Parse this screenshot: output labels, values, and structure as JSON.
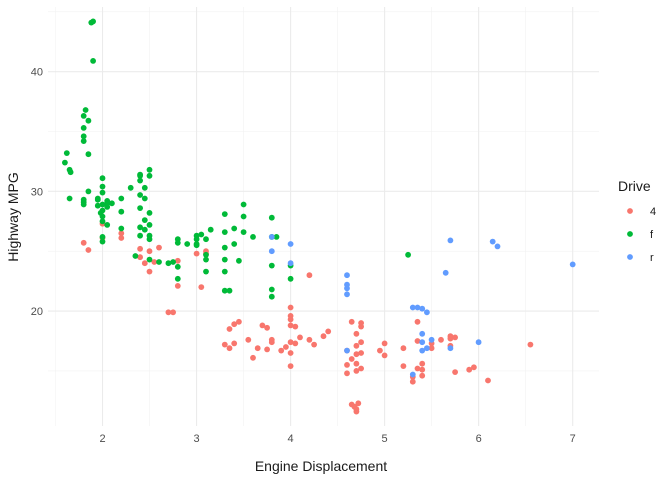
{
  "chart_data": {
    "type": "scatter",
    "xlabel": "Engine Displacement",
    "ylabel": "Highway MPG",
    "xlim": [
      1.42,
      7.28
    ],
    "ylim": [
      10.4,
      45.4
    ],
    "x_ticks": [
      2,
      3,
      4,
      5,
      6,
      7
    ],
    "y_ticks": [
      20,
      30,
      40
    ],
    "grid": true,
    "legend": {
      "title": "Drive",
      "position": "right"
    },
    "series": [
      {
        "name": "4",
        "color": "#F8766D",
        "points": [
          [
            1.8,
            25.7
          ],
          [
            1.85,
            25.1
          ],
          [
            2.0,
            26.1
          ],
          [
            2.0,
            27.3
          ],
          [
            2.2,
            26.5
          ],
          [
            2.2,
            26.1
          ],
          [
            2.4,
            25.2
          ],
          [
            2.4,
            24.5
          ],
          [
            2.45,
            24.0
          ],
          [
            2.5,
            25.0
          ],
          [
            2.5,
            23.3
          ],
          [
            2.55,
            24.1
          ],
          [
            2.6,
            25.3
          ],
          [
            2.7,
            19.9
          ],
          [
            2.75,
            19.9
          ],
          [
            2.8,
            24.2
          ],
          [
            2.8,
            22.1
          ],
          [
            3.0,
            24.8
          ],
          [
            3.05,
            22.0
          ],
          [
            3.1,
            25.0
          ],
          [
            3.1,
            24.8
          ],
          [
            3.3,
            17.2
          ],
          [
            3.35,
            16.9
          ],
          [
            3.4,
            17.3
          ],
          [
            3.35,
            18.5
          ],
          [
            3.4,
            18.9
          ],
          [
            3.45,
            19.1
          ],
          [
            3.55,
            17.6
          ],
          [
            3.6,
            16.1
          ],
          [
            3.65,
            16.9
          ],
          [
            3.7,
            18.8
          ],
          [
            3.75,
            18.6
          ],
          [
            3.75,
            16.8
          ],
          [
            3.8,
            17.6
          ],
          [
            3.8,
            17.4
          ],
          [
            3.9,
            16.7
          ],
          [
            3.95,
            17.0
          ],
          [
            4.0,
            19.3
          ],
          [
            4.0,
            18.8
          ],
          [
            4.0,
            20.3
          ],
          [
            4.0,
            19.6
          ],
          [
            4.05,
            18.7
          ],
          [
            4.0,
            17.4
          ],
          [
            4.0,
            16.5
          ],
          [
            4.0,
            15.4
          ],
          [
            4.05,
            17.3
          ],
          [
            4.1,
            17.8
          ],
          [
            4.2,
            17.6
          ],
          [
            4.2,
            23.0
          ],
          [
            4.25,
            17.2
          ],
          [
            4.35,
            17.9
          ],
          [
            4.4,
            18.3
          ],
          [
            4.6,
            16.7
          ],
          [
            4.6,
            15.5
          ],
          [
            4.6,
            14.8
          ],
          [
            4.65,
            16.0
          ],
          [
            4.65,
            19.1
          ],
          [
            4.7,
            18.1
          ],
          [
            4.7,
            16.4
          ],
          [
            4.7,
            15.6
          ],
          [
            4.7,
            15.0
          ],
          [
            4.7,
            17.1
          ],
          [
            4.65,
            12.2
          ],
          [
            4.68,
            12.0
          ],
          [
            4.7,
            11.8
          ],
          [
            4.72,
            12.3
          ],
          [
            4.7,
            11.6
          ],
          [
            4.75,
            18.7
          ],
          [
            4.75,
            17.4
          ],
          [
            4.75,
            16.5
          ],
          [
            4.75,
            19.0
          ],
          [
            4.75,
            15.2
          ],
          [
            5.0,
            17.3
          ],
          [
            4.95,
            16.7
          ],
          [
            5.0,
            16.3
          ],
          [
            5.2,
            15.4
          ],
          [
            5.2,
            16.9
          ],
          [
            5.3,
            14.1
          ],
          [
            5.3,
            14.5
          ],
          [
            5.35,
            17.5
          ],
          [
            5.35,
            19.1
          ],
          [
            5.35,
            15.2
          ],
          [
            5.4,
            15.6
          ],
          [
            5.5,
            16.9
          ],
          [
            5.5,
            17.3
          ],
          [
            5.4,
            15.1
          ],
          [
            5.4,
            14.6
          ],
          [
            5.6,
            17.6
          ],
          [
            5.7,
            17.7
          ],
          [
            5.7,
            17.1
          ],
          [
            5.7,
            17.9
          ],
          [
            5.75,
            17.8
          ],
          [
            5.75,
            14.9
          ],
          [
            5.9,
            15.1
          ],
          [
            5.95,
            15.3
          ],
          [
            6.1,
            14.2
          ],
          [
            6.55,
            17.2
          ]
        ]
      },
      {
        "name": "f",
        "color": "#00BA38",
        "points": [
          [
            1.6,
            32.4
          ],
          [
            1.62,
            33.2
          ],
          [
            1.65,
            31.8
          ],
          [
            1.66,
            31.6
          ],
          [
            1.65,
            29.4
          ],
          [
            1.8,
            35.3
          ],
          [
            1.8,
            36.3
          ],
          [
            1.8,
            34.2
          ],
          [
            1.8,
            34.6
          ],
          [
            1.82,
            36.8
          ],
          [
            1.85,
            35.9
          ],
          [
            1.85,
            33.1
          ],
          [
            1.85,
            30.0
          ],
          [
            1.8,
            28.9
          ],
          [
            1.8,
            29.1
          ],
          [
            1.8,
            29.3
          ],
          [
            1.88,
            44.1
          ],
          [
            1.9,
            44.2
          ],
          [
            1.9,
            40.9
          ],
          [
            1.95,
            29.4
          ],
          [
            1.95,
            29.3
          ],
          [
            1.95,
            28.8
          ],
          [
            1.98,
            28.2
          ],
          [
            2.0,
            31.1
          ],
          [
            2.0,
            30.4
          ],
          [
            2.0,
            29.9
          ],
          [
            2.0,
            28.9
          ],
          [
            2.0,
            28.4
          ],
          [
            2.0,
            27.9
          ],
          [
            2.0,
            27.5
          ],
          [
            2.0,
            26.2
          ],
          [
            2.0,
            25.8
          ],
          [
            2.05,
            29.2
          ],
          [
            2.05,
            29.0
          ],
          [
            2.05,
            28.7
          ],
          [
            2.05,
            27.2
          ],
          [
            2.1,
            29.0
          ],
          [
            2.2,
            29.4
          ],
          [
            2.2,
            28.3
          ],
          [
            2.2,
            26.9
          ],
          [
            2.3,
            30.3
          ],
          [
            2.35,
            24.6
          ],
          [
            2.4,
            31.4
          ],
          [
            2.4,
            31.3
          ],
          [
            2.4,
            30.9
          ],
          [
            2.4,
            29.7
          ],
          [
            2.4,
            28.6
          ],
          [
            2.4,
            27.0
          ],
          [
            2.4,
            26.3
          ],
          [
            2.45,
            30.3
          ],
          [
            2.45,
            29.4
          ],
          [
            2.45,
            27.6
          ],
          [
            2.45,
            26.8
          ],
          [
            2.5,
            31.8
          ],
          [
            2.5,
            31.3
          ],
          [
            2.5,
            28.2
          ],
          [
            2.5,
            27.2
          ],
          [
            2.5,
            26.3
          ],
          [
            2.5,
            26.0
          ],
          [
            2.5,
            24.3
          ],
          [
            2.6,
            24.1
          ],
          [
            2.7,
            24.0
          ],
          [
            2.75,
            24.1
          ],
          [
            2.8,
            26.0
          ],
          [
            2.8,
            25.7
          ],
          [
            2.8,
            23.7
          ],
          [
            2.8,
            22.7
          ],
          [
            2.9,
            25.6
          ],
          [
            3.0,
            26.3
          ],
          [
            3.0,
            26.0
          ],
          [
            3.0,
            25.6
          ],
          [
            3.0,
            25.5
          ],
          [
            3.05,
            26.4
          ],
          [
            3.1,
            26.0
          ],
          [
            3.1,
            24.7
          ],
          [
            3.1,
            24.3
          ],
          [
            3.1,
            23.3
          ],
          [
            3.15,
            26.8
          ],
          [
            3.3,
            28.1
          ],
          [
            3.3,
            26.6
          ],
          [
            3.3,
            25.3
          ],
          [
            3.3,
            24.3
          ],
          [
            3.3,
            23.3
          ],
          [
            3.3,
            21.7
          ],
          [
            3.35,
            21.7
          ],
          [
            3.4,
            26.9
          ],
          [
            3.4,
            25.6
          ],
          [
            3.45,
            24.2
          ],
          [
            3.5,
            27.9
          ],
          [
            3.5,
            28.9
          ],
          [
            3.5,
            26.6
          ],
          [
            3.6,
            26.2
          ],
          [
            3.8,
            27.8
          ],
          [
            3.8,
            26.2
          ],
          [
            3.8,
            23.8
          ],
          [
            3.8,
            21.8
          ],
          [
            3.8,
            21.2
          ],
          [
            3.85,
            26.2
          ],
          [
            4.0,
            23.8
          ],
          [
            4.0,
            22.7
          ],
          [
            5.25,
            24.7
          ]
        ]
      },
      {
        "name": "r",
        "color": "#619CFF",
        "points": [
          [
            3.8,
            26.2
          ],
          [
            3.8,
            25.0
          ],
          [
            4.0,
            25.6
          ],
          [
            4.0,
            24.0
          ],
          [
            4.6,
            23.0
          ],
          [
            4.6,
            22.2
          ],
          [
            4.6,
            21.9
          ],
          [
            4.6,
            21.4
          ],
          [
            4.6,
            16.7
          ],
          [
            5.3,
            20.3
          ],
          [
            5.35,
            20.3
          ],
          [
            5.4,
            20.2
          ],
          [
            5.4,
            18.1
          ],
          [
            5.4,
            17.4
          ],
          [
            5.4,
            16.7
          ],
          [
            5.45,
            19.9
          ],
          [
            5.45,
            16.9
          ],
          [
            5.3,
            14.7
          ],
          [
            5.7,
            25.9
          ],
          [
            5.65,
            23.2
          ],
          [
            5.7,
            16.9
          ],
          [
            5.5,
            17.6
          ],
          [
            6.0,
            17.4
          ],
          [
            6.15,
            25.8
          ],
          [
            6.2,
            25.4
          ],
          [
            7.0,
            23.9
          ]
        ]
      }
    ]
  }
}
